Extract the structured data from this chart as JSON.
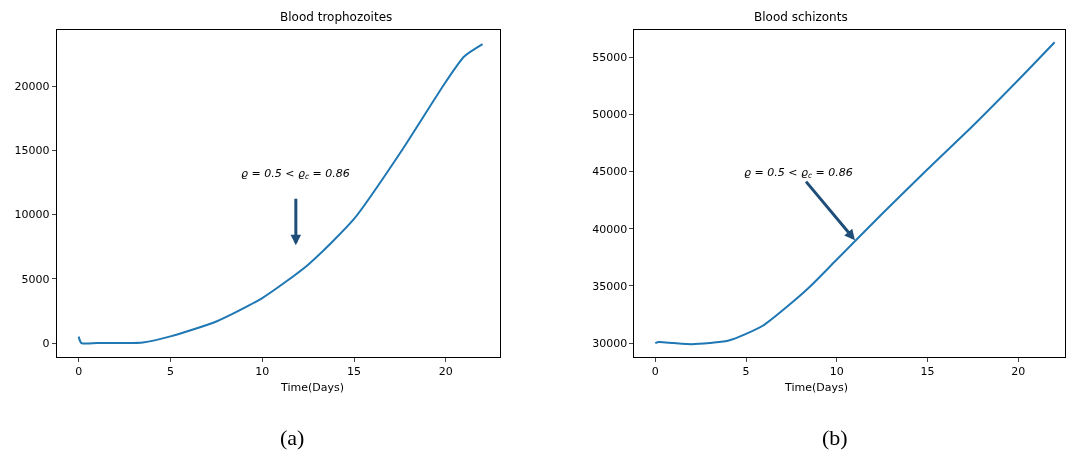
{
  "chart_data": [
    {
      "type": "line",
      "title": "Blood trophozoites",
      "xlabel": "Time(Days)",
      "x": [
        0,
        0.15,
        1,
        2,
        2.5,
        3.5,
        5,
        7.5,
        10,
        12.5,
        15,
        17.5,
        20,
        21,
        22
      ],
      "series": [
        {
          "color": "#1f77b4",
          "values": [
            500,
            0,
            0,
            0,
            0,
            50,
            520,
            1680,
            3500,
            6100,
            9660,
            14770,
            20340,
            22300,
            23260
          ]
        }
      ],
      "xlim": [
        -1.2,
        22.94
      ],
      "xticks": [
        0,
        5,
        10,
        15,
        20
      ],
      "ylim": [
        -1090,
        24360
      ],
      "yticks": [
        0,
        5000,
        10000,
        15000,
        20000
      ],
      "marker": "none",
      "line_style": "solid",
      "annotations": [
        "ϱ = 0.5 < ϱ$_{c}$ = 0.86",
        "(a)"
      ]
    },
    {
      "type": "line",
      "title": "Blood schizonts",
      "xlabel": "Time(Days)",
      "x": [
        0,
        0.2,
        1,
        2,
        3,
        3.5,
        4,
        5,
        6,
        7.5,
        8.5,
        10,
        12.5,
        15,
        17.5,
        20,
        22
      ],
      "series": [
        {
          "color": "#1f77b4",
          "values": [
            30000,
            30100,
            30000,
            29900,
            30000,
            30100,
            30200,
            30800,
            31600,
            33500,
            34900,
            37300,
            41300,
            45200,
            49000,
            53000,
            56300
          ]
        }
      ],
      "xlim": [
        -1.15,
        22.56
      ],
      "xticks": [
        0,
        5,
        10,
        15,
        20
      ],
      "ylim": [
        28780,
        57360
      ],
      "yticks": [
        30000,
        35000,
        40000,
        45000,
        50000,
        55000
      ],
      "marker": "none",
      "line_style": "solid",
      "annotations": [
        {
          "text": "ϱ = 0.5 < ϱ$_{c}$ = 0.86",
          "x": 11,
          "y": 39000
        },
        "(b)"
      ]
    }
  ]
}
